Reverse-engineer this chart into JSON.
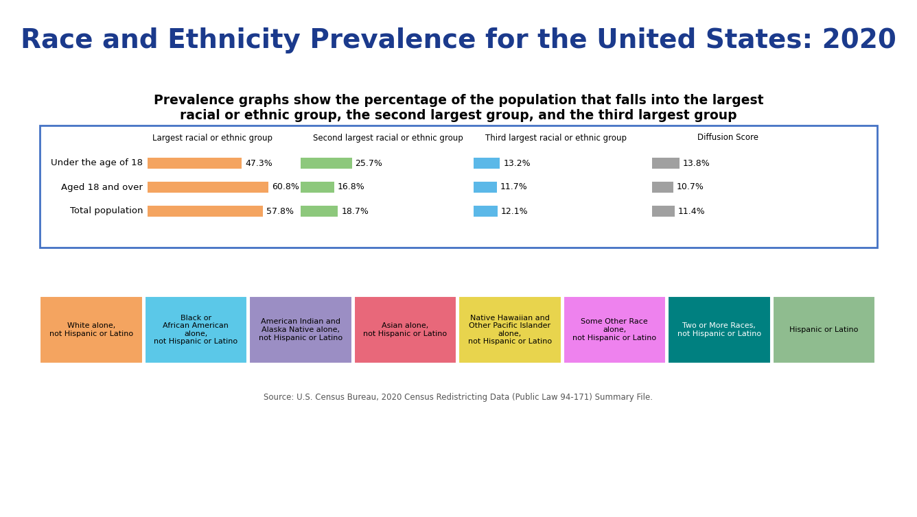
{
  "title": "Race and Ethnicity Prevalence for the United States: 2020",
  "subtitle_line1": "Prevalence graphs show the percentage of the population that falls into the largest",
  "subtitle_line2": "racial or ethnic group, the second largest group, and the third largest group",
  "title_color": "#1B3A8C",
  "subtitle_color": "#000000",
  "rows": [
    "Under the age of 18",
    "Aged 18 and over",
    "Total population"
  ],
  "col_headers": [
    "Largest racial or ethnic group",
    "Second largest racial or ethnic group",
    "Third largest racial or ethnic group",
    "Diffusion Score"
  ],
  "col1_values": [
    47.3,
    60.8,
    57.8
  ],
  "col2_values": [
    25.7,
    16.8,
    18.7
  ],
  "col3_values": [
    13.2,
    11.7,
    12.1
  ],
  "col4_values": [
    13.8,
    10.7,
    11.4
  ],
  "col1_labels": [
    "47.3%",
    "60.8%",
    "57.8%"
  ],
  "col2_labels": [
    "25.7%",
    "16.8%",
    "18.7%"
  ],
  "col3_labels": [
    "13.2%",
    "11.7%",
    "12.1%"
  ],
  "col4_labels": [
    "13.8%",
    "10.7%",
    "11.4%"
  ],
  "col1_color": "#F4A460",
  "col2_color": "#8DC87C",
  "col3_color": "#5BB8E8",
  "col4_color": "#A0A0A0",
  "legend_boxes": [
    {
      "label": "White alone,\nnot Hispanic or Latino",
      "color": "#F4A460",
      "text_color": "#000000"
    },
    {
      "label": "Black or\nAfrican American\nalone,\nnot Hispanic or Latino",
      "color": "#5BC8E8",
      "text_color": "#000000"
    },
    {
      "label": "American Indian and\nAlaska Native alone,\nnot Hispanic or Latino",
      "color": "#9B8EC4",
      "text_color": "#000000"
    },
    {
      "label": "Asian alone,\nnot Hispanic or Latino",
      "color": "#E8687A",
      "text_color": "#000000"
    },
    {
      "label": "Native Hawaiian and\nOther Pacific Islander\nalone,\nnot Hispanic or Latino",
      "color": "#E8D44D",
      "text_color": "#000000"
    },
    {
      "label": "Some Other Race\nalone,\nnot Hispanic or Latino",
      "color": "#EE82EE",
      "text_color": "#000000"
    },
    {
      "label": "Two or More Races,\nnot Hispanic or Latino",
      "color": "#008080",
      "text_color": "#FFFFFF"
    },
    {
      "label": "Hispanic or Latino",
      "color": "#8FBC8F",
      "text_color": "#000000"
    }
  ],
  "source_text": "Source: U.S. Census Bureau, 2020 Census Redistricting Data (Public Law 94-171) Summary File.",
  "background_color": "#FFFFFF",
  "box_border_color": "#4472C4",
  "figwidth": 13.36,
  "figheight": 7.54,
  "dpi": 100
}
